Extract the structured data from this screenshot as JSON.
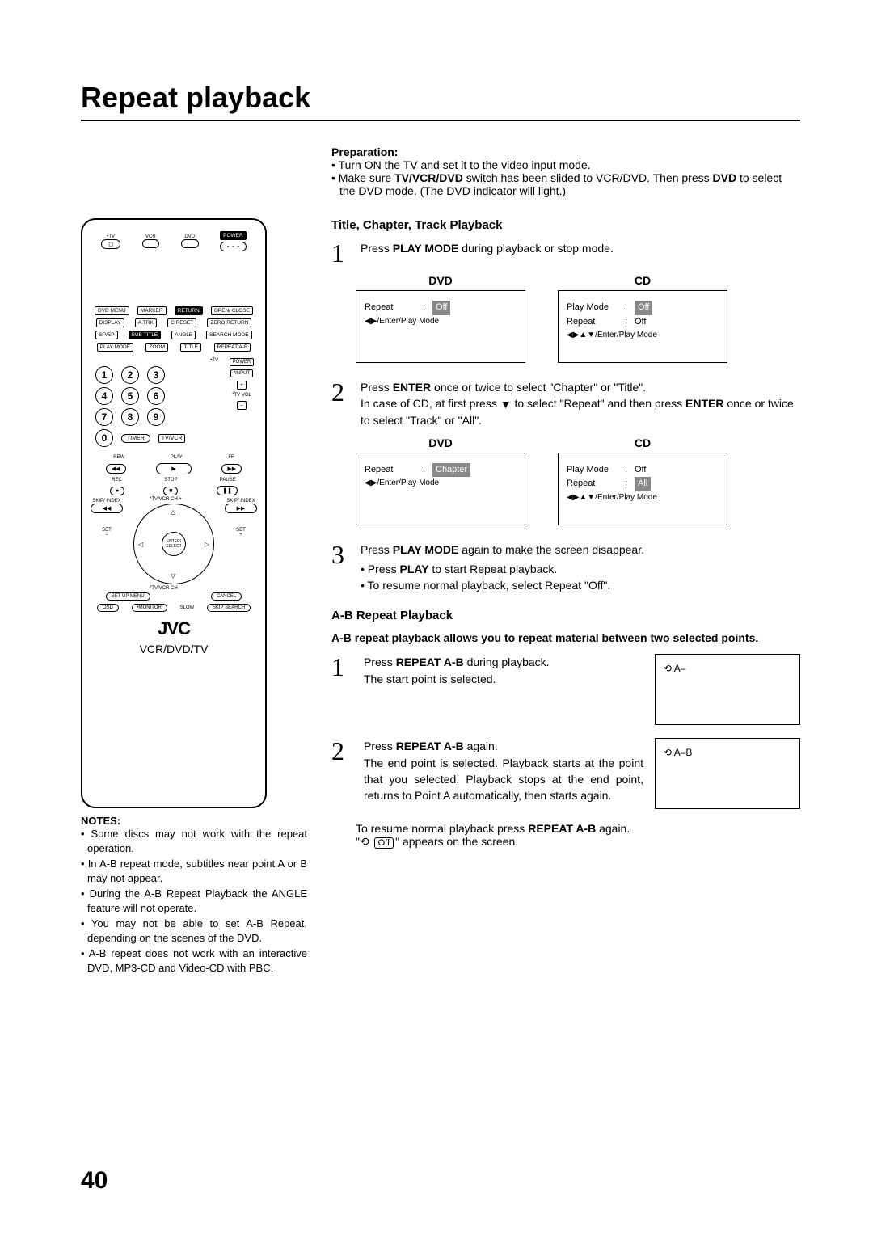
{
  "page": {
    "title": "Repeat playback",
    "number": "40"
  },
  "remote": {
    "top": {
      "tv": "TV",
      "vcr": "VCR",
      "dvd": "DVD",
      "power": "POWER"
    },
    "grid1": [
      [
        "DVD MENU",
        "MARKER",
        "RETURN",
        "OPEN/\nCLOSE"
      ],
      [
        "DISPLAY",
        "A.TRK",
        "C.RESET",
        "ZERO RETURN"
      ],
      [
        "SP/EP",
        "SUB TITLE",
        "ANGLE",
        "SEARCH MODE"
      ],
      [
        "PLAY MODE",
        "ZOOM",
        "TITLE",
        "REPEAT A-B"
      ]
    ],
    "tvlabel": "TV",
    "numpad": [
      [
        "1",
        "2",
        "3"
      ],
      [
        "4",
        "5",
        "6"
      ],
      [
        "7",
        "8",
        "9"
      ],
      [
        "0"
      ]
    ],
    "side": [
      "POWER",
      "INPUT",
      "+",
      "TV VOL",
      "–"
    ],
    "timer": "TIMER",
    "tvvcr": "TV/VCR",
    "transport": {
      "rew": "REW",
      "play": "PLAY",
      "ff": "FF",
      "rec": "REC",
      "stop": "STOP",
      "pause": "PAUSE"
    },
    "dcross": {
      "skip": "SKIP/\nINDEX",
      "prev": "◀◀",
      "next": "▶▶",
      "set": "SET",
      "enter": "ENTER/\nSELECT",
      "setup": "SET UP\nMENU",
      "cancel": "CANCEL",
      "tvvcrch": "TV/VCR CH"
    },
    "bottom": {
      "osd": "OSD",
      "monitor": "MONITOR",
      "slow": "SLOW",
      "skipsrch": "SKIP SEARCH"
    },
    "brand": "JVC",
    "model": "VCR/DVD/TV"
  },
  "notes": {
    "heading": "NOTES:",
    "items": [
      "Some discs may not work with the repeat operation.",
      "In A-B repeat mode, subtitles near point A or B may not appear.",
      "During the A-B Repeat Playback the ANGLE feature will not operate.",
      "You may not be able to set A-B Repeat, depending on the scenes of the DVD.",
      "A-B repeat does not work with an interactive DVD, MP3-CD and Video-CD with PBC."
    ]
  },
  "prep": {
    "heading": "Preparation:",
    "items": [
      {
        "pre": "Turn ON the TV and set it to the video input mode.",
        "bold": "",
        "post": ""
      },
      {
        "pre": "Make sure ",
        "bold": "TV/VCR/DVD",
        "post": " switch has been slided to VCR/DVD. Then press ",
        "bold2": "DVD",
        "post2": " to select the DVD mode. (The DVD indicator will light.)"
      }
    ]
  },
  "section1": {
    "heading": "Title, Chapter, Track Playback",
    "step1": {
      "pre": "Press ",
      "bold": "PLAY MODE",
      "post": " during playback or stop mode."
    },
    "step2": {
      "line1pre": "Press ",
      "line1bold": "ENTER",
      "line1post": " once or twice to select \"Chapter\" or \"Title\".",
      "line2a": "In case of CD, at first press ",
      "line2b": " to select \"Repeat\" and then press ",
      "line2bold": "ENTER",
      "line2c": " once or twice to select \"Track\" or \"All\"."
    },
    "step3": {
      "pre": "Press ",
      "bold": "PLAY MODE",
      "post": " again to make the screen disappear.",
      "sub": [
        "Press <b>PLAY</b> to start Repeat playback.",
        "To resume normal playback, select Repeat \"Off\"."
      ]
    },
    "screens1": {
      "dvd": {
        "label": "DVD",
        "repeat": "Repeat",
        "value": "Off",
        "hint": "◀▶/Enter/Play Mode"
      },
      "cd": {
        "label": "CD",
        "playmode": "Play Mode",
        "pmval": "Off",
        "repeat": "Repeat",
        "rval": "Off",
        "hint": "◀▶▲▼/Enter/Play Mode"
      }
    },
    "screens2": {
      "dvd": {
        "label": "DVD",
        "repeat": "Repeat",
        "value": "Chapter",
        "hint": "◀▶/Enter/Play Mode"
      },
      "cd": {
        "label": "CD",
        "playmode": "Play Mode",
        "pmval": "Off",
        "repeat": "Repeat",
        "rval": "All",
        "hint": "◀▶▲▼/Enter/Play Mode"
      }
    }
  },
  "section2": {
    "heading": "A-B Repeat Playback",
    "intro": "A-B repeat playback allows you to repeat material between two selected points.",
    "step1": {
      "pre": "Press ",
      "bold": "REPEAT A-B",
      "post": " during playback.",
      "line2": "The start point is selected.",
      "screen": "⟲ A–"
    },
    "step2": {
      "pre": "Press ",
      "bold": "REPEAT A-B",
      "post": " again.",
      "line2": "The end point is selected. Playback starts at the point that you selected. Playback stops at the end point, returns to Point A automatically, then starts again.",
      "screen": "⟲ A–B"
    },
    "resume": {
      "pre": "To resume normal playback press ",
      "bold": "REPEAT A-B",
      "post": " again.",
      "off": "Off",
      "tail": "\" appears on the screen."
    }
  }
}
